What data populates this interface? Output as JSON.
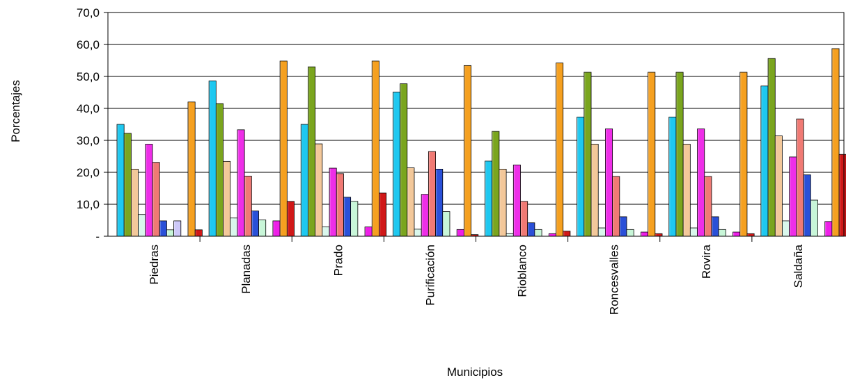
{
  "chart_data": {
    "type": "bar",
    "title": "",
    "xlabel": "Municipios",
    "ylabel": "Porcentajes",
    "ylim": [
      0,
      70
    ],
    "yticks": [
      0,
      10,
      20,
      30,
      40,
      50,
      60,
      70
    ],
    "ytick_labels": [
      "-",
      "10,0",
      "20,0",
      "30,0",
      "40,0",
      "50,0",
      "60,0",
      "70,0"
    ],
    "grid": true,
    "legend": "none",
    "categories": [
      "Piedras",
      "Planadas",
      "Prado",
      "Purificación",
      "Rioblanco",
      "Roncesvalles",
      "Rovira",
      "Saldaña"
    ],
    "series": [
      {
        "color": "#1ec8f0",
        "values": [
          35.0,
          48.6,
          35.0,
          45.1,
          23.5,
          37.3,
          37.3,
          47.0
        ]
      },
      {
        "color": "#7aa51e",
        "values": [
          32.2,
          41.5,
          53.0,
          47.7,
          32.8,
          51.3,
          51.3,
          55.6
        ]
      },
      {
        "color": "#f3c89a",
        "values": [
          21.0,
          23.4,
          28.9,
          21.4,
          21.0,
          28.8,
          28.8,
          31.4
        ]
      },
      {
        "color": "#d9f7ec",
        "values": [
          6.8,
          5.7,
          2.9,
          2.2,
          0.8,
          2.6,
          2.6,
          4.8
        ]
      },
      {
        "color": "#ee2ee8",
        "values": [
          28.8,
          33.3,
          21.3,
          13.1,
          22.3,
          33.6,
          33.6,
          24.8
        ]
      },
      {
        "color": "#f07a74",
        "values": [
          23.1,
          18.8,
          19.6,
          26.5,
          10.9,
          18.7,
          18.7,
          36.7
        ]
      },
      {
        "color": "#2a50d8",
        "values": [
          4.8,
          7.9,
          12.2,
          21.0,
          4.2,
          6.1,
          6.1,
          19.2
        ]
      },
      {
        "color": "#c8f6d8",
        "values": [
          2.0,
          5.1,
          10.9,
          7.7,
          2.1,
          2.1,
          2.1,
          11.3
        ]
      },
      {
        "color": "#cdc8f8",
        "values": [
          4.8,
          0,
          0,
          0,
          0,
          0,
          0,
          0
        ]
      },
      {
        "color": "#ee1ee8",
        "values": [
          0,
          4.8,
          2.9,
          2.1,
          0.8,
          1.3,
          1.3,
          4.6
        ]
      },
      {
        "color": "#f5a020",
        "values": [
          42.0,
          54.8,
          54.8,
          53.4,
          54.2,
          51.3,
          51.3,
          58.7
        ]
      },
      {
        "color": "#d01818",
        "values": [
          2.0,
          10.9,
          13.5,
          0.5,
          1.6,
          0.8,
          0.8,
          25.6
        ]
      }
    ]
  }
}
